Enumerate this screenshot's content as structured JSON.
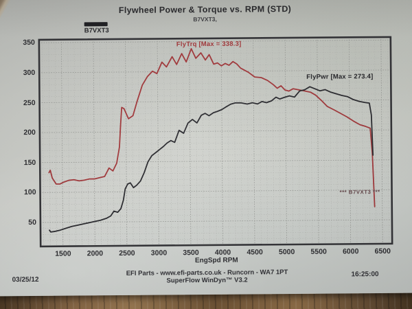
{
  "photo": {
    "date_stamp": "03/25/12",
    "time_stamp": "16:25:00"
  },
  "legend": {
    "run_label": "B7VXT3"
  },
  "footer": {
    "line1": "EFI Parts - www.efi-parts.co.uk - Runcorn - WA7 1PT",
    "line2": "SuperFlow WinDyn™ V3.2"
  },
  "colors": {
    "flytrq": "#a23538",
    "flypwr": "#27272c",
    "frame": "#303034",
    "grid_major": "#9b9d99",
    "grid_minor": "#b5b7b3",
    "paper": "#cbcdc8"
  },
  "chart_data": {
    "type": "line",
    "title": "Flywheel Power & Torque vs. RPM (STD)",
    "subtitle": "B7VXT3,",
    "xlabel": "EngSpd RPM",
    "ylabel": "",
    "xlim": [
      1150,
      6650
    ],
    "ylim": [
      10,
      355
    ],
    "x_ticks": [
      1500,
      2000,
      2500,
      3000,
      3500,
      4000,
      4500,
      5000,
      5500,
      6000,
      6500
    ],
    "y_ticks": [
      50,
      100,
      150,
      200,
      250,
      300,
      350
    ],
    "grid": "dotted minor grid every 100 RPM and 10 units",
    "legend_position": "inline labels near curves; run swatch top-left",
    "annotations": {
      "run_tag": "*** B7VXT3 ***"
    },
    "series": [
      {
        "name": "FlyTrq",
        "label": "FlyTrq [Max = 338.3]",
        "max": 338.3,
        "color": "#a23538",
        "points": [
          [
            1290,
            133
          ],
          [
            1310,
            137
          ],
          [
            1340,
            124
          ],
          [
            1400,
            114
          ],
          [
            1460,
            114
          ],
          [
            1520,
            117
          ],
          [
            1600,
            120
          ],
          [
            1680,
            121
          ],
          [
            1760,
            119
          ],
          [
            1840,
            120
          ],
          [
            1920,
            122
          ],
          [
            2000,
            122
          ],
          [
            2080,
            124
          ],
          [
            2160,
            126
          ],
          [
            2230,
            140
          ],
          [
            2290,
            135
          ],
          [
            2350,
            148
          ],
          [
            2395,
            175
          ],
          [
            2415,
            212
          ],
          [
            2435,
            241
          ],
          [
            2470,
            239
          ],
          [
            2540,
            222
          ],
          [
            2610,
            227
          ],
          [
            2680,
            252
          ],
          [
            2760,
            278
          ],
          [
            2840,
            292
          ],
          [
            2920,
            301
          ],
          [
            2990,
            297
          ],
          [
            3070,
            316
          ],
          [
            3140,
            308
          ],
          [
            3230,
            325
          ],
          [
            3300,
            312
          ],
          [
            3380,
            330
          ],
          [
            3450,
            316
          ],
          [
            3530,
            338
          ],
          [
            3600,
            322
          ],
          [
            3680,
            331
          ],
          [
            3750,
            319
          ],
          [
            3810,
            328
          ],
          [
            3880,
            312
          ],
          [
            3940,
            314
          ],
          [
            4000,
            309
          ],
          [
            4060,
            313
          ],
          [
            4120,
            310
          ],
          [
            4180,
            316
          ],
          [
            4240,
            312
          ],
          [
            4300,
            305
          ],
          [
            4420,
            298
          ],
          [
            4520,
            290
          ],
          [
            4620,
            289
          ],
          [
            4720,
            284
          ],
          [
            4810,
            277
          ],
          [
            4870,
            271
          ],
          [
            4930,
            275
          ],
          [
            4990,
            268
          ],
          [
            5050,
            266
          ],
          [
            5120,
            270
          ],
          [
            5210,
            268
          ],
          [
            5300,
            266
          ],
          [
            5390,
            264
          ],
          [
            5470,
            259
          ],
          [
            5560,
            250
          ],
          [
            5650,
            240
          ],
          [
            5760,
            234
          ],
          [
            5860,
            228
          ],
          [
            5960,
            222
          ],
          [
            6060,
            215
          ],
          [
            6160,
            209
          ],
          [
            6250,
            206
          ],
          [
            6320,
            203
          ],
          [
            6350,
            160
          ],
          [
            6380,
            72
          ]
        ]
      },
      {
        "name": "FlyPwr",
        "label": "FlyPwr [Max = 273.4]",
        "max": 273.4,
        "color": "#27272c",
        "points": [
          [
            1290,
            37
          ],
          [
            1310,
            34
          ],
          [
            1380,
            35
          ],
          [
            1460,
            37
          ],
          [
            1550,
            40
          ],
          [
            1640,
            43
          ],
          [
            1730,
            45
          ],
          [
            1820,
            47
          ],
          [
            1910,
            49
          ],
          [
            2000,
            51
          ],
          [
            2090,
            53
          ],
          [
            2180,
            56
          ],
          [
            2250,
            60
          ],
          [
            2300,
            68
          ],
          [
            2360,
            66
          ],
          [
            2410,
            72
          ],
          [
            2450,
            86
          ],
          [
            2480,
            105
          ],
          [
            2520,
            113
          ],
          [
            2560,
            115
          ],
          [
            2610,
            107
          ],
          [
            2660,
            111
          ],
          [
            2720,
            118
          ],
          [
            2780,
            132
          ],
          [
            2840,
            150
          ],
          [
            2900,
            160
          ],
          [
            2960,
            165
          ],
          [
            3020,
            170
          ],
          [
            3080,
            175
          ],
          [
            3140,
            181
          ],
          [
            3200,
            185
          ],
          [
            3260,
            182
          ],
          [
            3330,
            202
          ],
          [
            3400,
            197
          ],
          [
            3470,
            214
          ],
          [
            3540,
            220
          ],
          [
            3610,
            214
          ],
          [
            3680,
            227
          ],
          [
            3740,
            230
          ],
          [
            3800,
            226
          ],
          [
            3870,
            231
          ],
          [
            3930,
            233
          ],
          [
            4000,
            236
          ],
          [
            4060,
            240
          ],
          [
            4140,
            245
          ],
          [
            4210,
            247
          ],
          [
            4300,
            247
          ],
          [
            4400,
            245
          ],
          [
            4480,
            247
          ],
          [
            4560,
            245
          ],
          [
            4630,
            249
          ],
          [
            4700,
            247
          ],
          [
            4780,
            250
          ],
          [
            4850,
            256
          ],
          [
            4910,
            253
          ],
          [
            4990,
            256
          ],
          [
            5060,
            258
          ],
          [
            5140,
            256
          ],
          [
            5220,
            266
          ],
          [
            5300,
            268
          ],
          [
            5380,
            273
          ],
          [
            5450,
            270
          ],
          [
            5540,
            266
          ],
          [
            5620,
            268
          ],
          [
            5700,
            264
          ],
          [
            5790,
            261
          ],
          [
            5880,
            258
          ],
          [
            5970,
            256
          ],
          [
            6060,
            251
          ],
          [
            6150,
            248
          ],
          [
            6240,
            246
          ],
          [
            6310,
            245
          ],
          [
            6340,
            225
          ],
          [
            6360,
            158
          ]
        ]
      }
    ]
  }
}
